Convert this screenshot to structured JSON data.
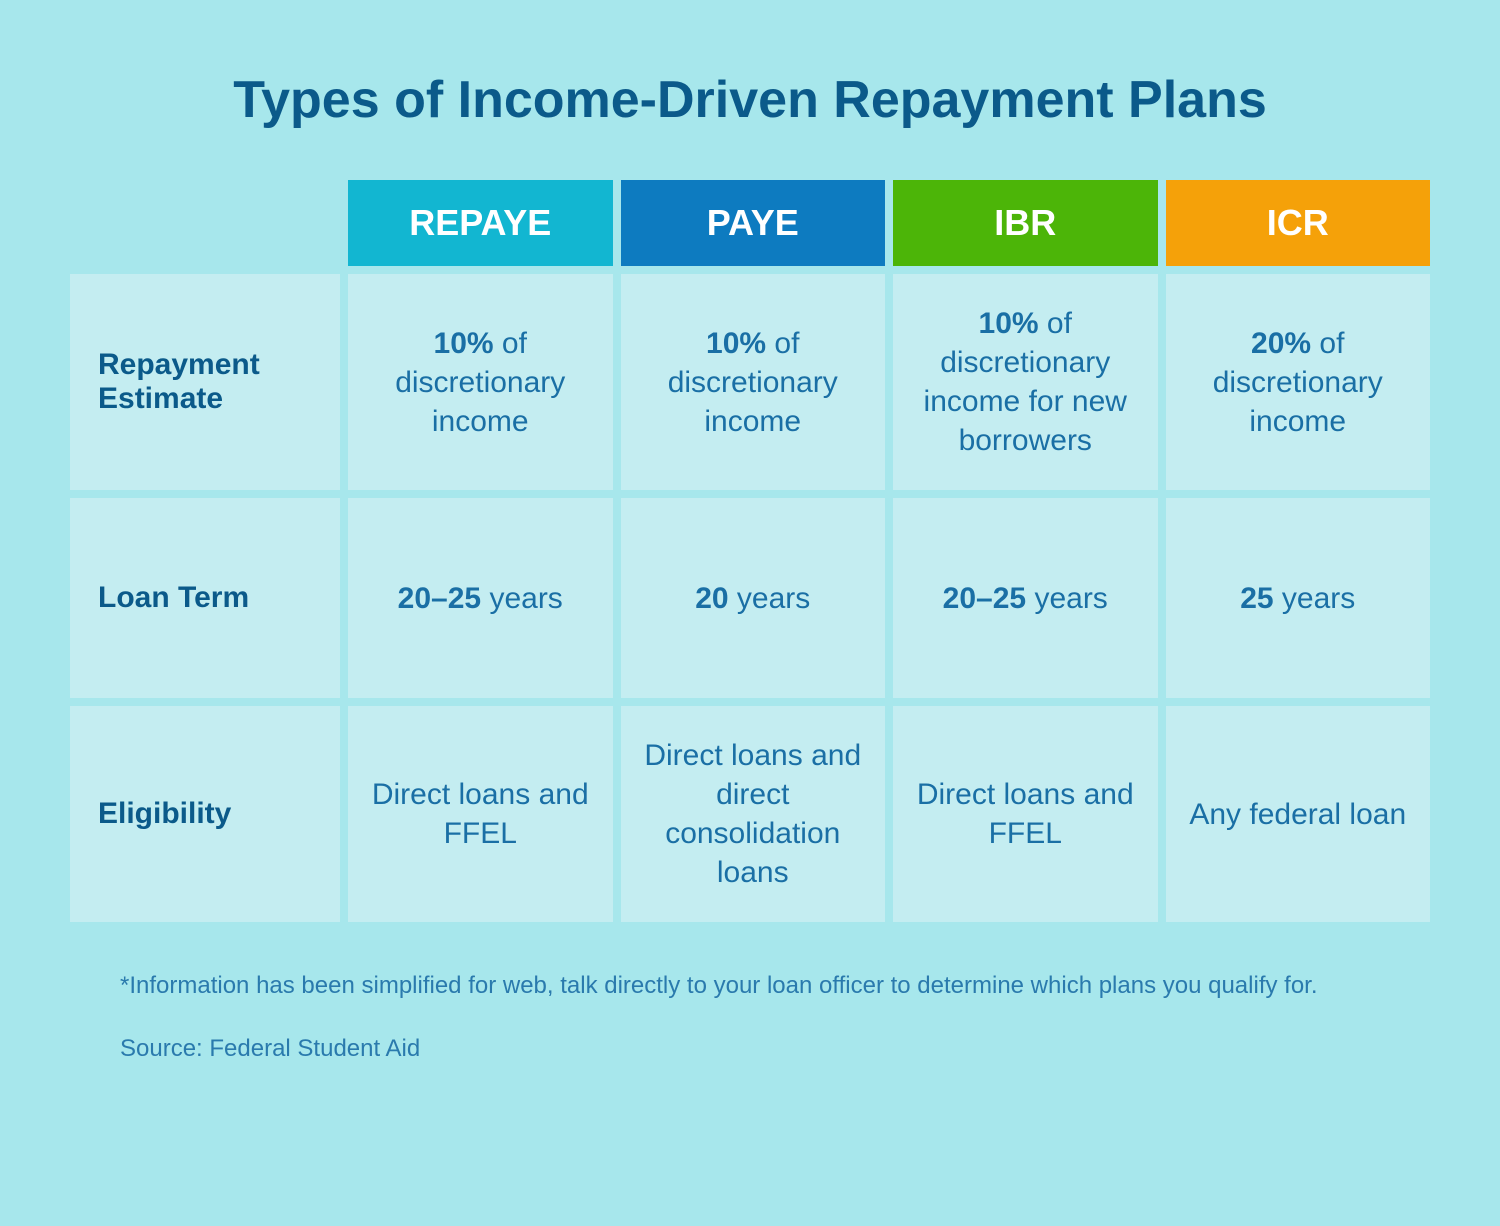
{
  "title": "Types of Income-Driven Repayment Plans",
  "background_color": "#a7e7ec",
  "cell_color": "#c4edf1",
  "title_color": "#0b5a8a",
  "text_color": "#1a6fa5",
  "columns": [
    {
      "label": "REPAYE",
      "bg": "#12b6d1"
    },
    {
      "label": "PAYE",
      "bg": "#0d7bc0"
    },
    {
      "label": "IBR",
      "bg": "#4cb508"
    },
    {
      "label": "ICR",
      "bg": "#f5a109"
    }
  ],
  "rows": [
    {
      "label": "Repayment Estimate",
      "cells": [
        {
          "bold": "10%",
          "rest": " of discretionary income"
        },
        {
          "bold": "10%",
          "rest": " of discretionary income"
        },
        {
          "bold": "10%",
          "rest": " of discretionary income for new borrowers"
        },
        {
          "bold": "20%",
          "rest": " of discretionary income"
        }
      ]
    },
    {
      "label": "Loan Term",
      "cells": [
        {
          "bold": "20–25",
          "rest": " years"
        },
        {
          "bold": "20",
          "rest": " years"
        },
        {
          "bold": "20–25",
          "rest": " years"
        },
        {
          "bold": "25",
          "rest": " years"
        }
      ]
    },
    {
      "label": "Eligibility",
      "cells": [
        {
          "bold": "",
          "rest": "Direct loans and FFEL"
        },
        {
          "bold": "",
          "rest": "Direct loans and direct consolidation loans"
        },
        {
          "bold": "",
          "rest": "Direct loans and FFEL"
        },
        {
          "bold": "",
          "rest": "Any federal loan"
        }
      ]
    }
  ],
  "footnote": "*Information has been simplified for web, talk directly to your loan officer to determine which plans you qualify for.",
  "source": "Source: Federal Student Aid"
}
